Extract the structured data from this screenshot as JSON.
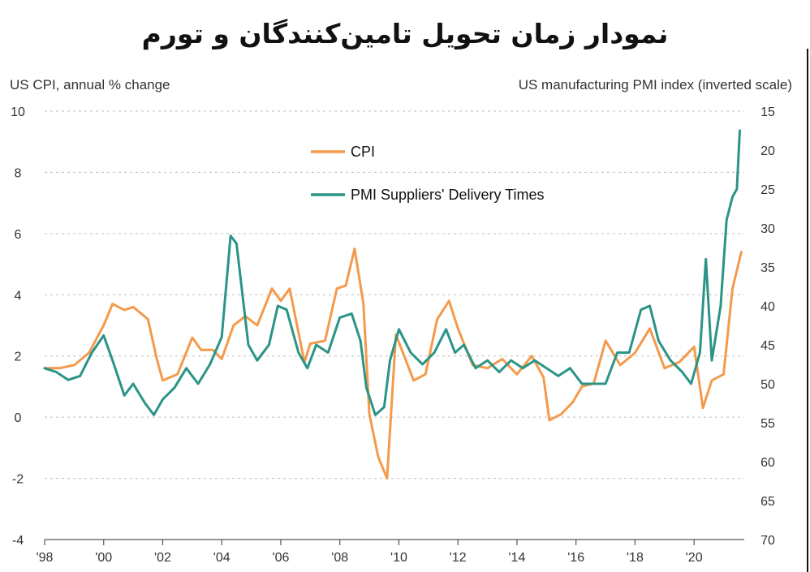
{
  "page_title": "نمودار زمان تحویل تامین‌کنندگان و تورم",
  "chart_data": {
    "type": "line",
    "left_axis_label": "US CPI, annual % change",
    "right_axis_label": "US manufacturing PMI index (inverted scale)",
    "x_range": [
      1998,
      2021.7
    ],
    "x_ticks": [
      "'98",
      "'00",
      "'02",
      "'04",
      "'06",
      "'08",
      "'10",
      "'12",
      "'14",
      "'16",
      "'18",
      "'20"
    ],
    "left_ylim": [
      -4,
      10
    ],
    "left_ticks": [
      "10",
      "8",
      "6",
      "4",
      "2",
      "0",
      "-2",
      "-4"
    ],
    "right_ylim": [
      70,
      15
    ],
    "right_ticks": [
      "15",
      "20",
      "25",
      "30",
      "35",
      "40",
      "45",
      "50",
      "55",
      "60",
      "65",
      "70"
    ],
    "grid": "horizontal dashed",
    "legend": [
      "CPI",
      "PMI Suppliers' Delivery Times"
    ],
    "series": [
      {
        "name": "CPI",
        "color": "#f39a4c",
        "axis": "left",
        "x": [
          1998.0,
          1998.5,
          1999.0,
          1999.5,
          2000.0,
          2000.3,
          2000.7,
          2001.0,
          2001.5,
          2001.8,
          2002.0,
          2002.5,
          2003.0,
          2003.3,
          2003.7,
          2004.0,
          2004.4,
          2004.8,
          2005.2,
          2005.7,
          2006.0,
          2006.3,
          2006.8,
          2007.0,
          2007.5,
          2007.9,
          2008.2,
          2008.5,
          2008.8,
          2009.0,
          2009.3,
          2009.6,
          2009.9,
          2010.1,
          2010.5,
          2010.9,
          2011.3,
          2011.7,
          2012.0,
          2012.5,
          2013.0,
          2013.5,
          2014.0,
          2014.5,
          2014.9,
          2015.1,
          2015.5,
          2015.9,
          2016.2,
          2016.6,
          2017.0,
          2017.5,
          2018.0,
          2018.5,
          2019.0,
          2019.5,
          2020.0,
          2020.3,
          2020.6,
          2021.0,
          2021.3,
          2021.6
        ],
        "values": [
          1.6,
          1.6,
          1.7,
          2.1,
          3.0,
          3.7,
          3.5,
          3.6,
          3.2,
          1.9,
          1.2,
          1.4,
          2.6,
          2.2,
          2.2,
          1.9,
          3.0,
          3.3,
          3.0,
          4.2,
          3.8,
          4.2,
          1.8,
          2.4,
          2.5,
          4.2,
          4.3,
          5.5,
          3.7,
          0.1,
          -1.3,
          -2.0,
          2.7,
          2.2,
          1.2,
          1.4,
          3.2,
          3.8,
          2.9,
          1.7,
          1.6,
          1.9,
          1.4,
          2.0,
          1.3,
          -0.1,
          0.1,
          0.5,
          1.0,
          1.1,
          2.5,
          1.7,
          2.1,
          2.9,
          1.6,
          1.8,
          2.3,
          0.3,
          1.2,
          1.4,
          4.2,
          5.4
        ]
      },
      {
        "name": "PMI Suppliers' Delivery Times",
        "color": "#2a9486",
        "axis": "right",
        "x": [
          1998.0,
          1998.4,
          1998.8,
          1999.2,
          1999.6,
          2000.0,
          2000.3,
          2000.7,
          2001.0,
          2001.4,
          2001.7,
          2002.0,
          2002.4,
          2002.8,
          2003.2,
          2003.6,
          2004.0,
          2004.3,
          2004.5,
          2004.9,
          2005.2,
          2005.6,
          2005.9,
          2006.2,
          2006.6,
          2006.9,
          2007.2,
          2007.6,
          2008.0,
          2008.4,
          2008.7,
          2008.9,
          2009.2,
          2009.5,
          2009.7,
          2010.0,
          2010.4,
          2010.8,
          2011.2,
          2011.6,
          2011.9,
          2012.2,
          2012.6,
          2013.0,
          2013.4,
          2013.8,
          2014.2,
          2014.6,
          2015.0,
          2015.4,
          2015.8,
          2016.2,
          2016.6,
          2017.0,
          2017.4,
          2017.8,
          2018.2,
          2018.5,
          2018.8,
          2019.2,
          2019.6,
          2019.9,
          2020.2,
          2020.4,
          2020.6,
          2020.9,
          2021.1,
          2021.3,
          2021.45,
          2021.55
        ],
        "values": [
          48.0,
          48.5,
          49.5,
          49.0,
          46.0,
          43.8,
          47.0,
          51.5,
          50.0,
          52.5,
          54.0,
          52.0,
          50.5,
          48.0,
          50.0,
          47.5,
          44.0,
          31.0,
          32.0,
          45.0,
          47.0,
          45.0,
          40.0,
          40.5,
          46.0,
          48.0,
          45.0,
          46.0,
          41.5,
          41.0,
          44.5,
          50.5,
          54.0,
          53.0,
          47.0,
          43.0,
          46.0,
          47.5,
          46.0,
          43.0,
          46.0,
          45.0,
          48.0,
          47.0,
          48.5,
          47.0,
          48.0,
          47.0,
          48.0,
          49.0,
          48.0,
          50.0,
          50.0,
          50.0,
          46.0,
          46.0,
          40.5,
          40.0,
          44.5,
          47.0,
          48.5,
          50.0,
          46.0,
          34.0,
          47.0,
          40.0,
          29.0,
          26.0,
          25.0,
          17.5
        ]
      }
    ]
  }
}
